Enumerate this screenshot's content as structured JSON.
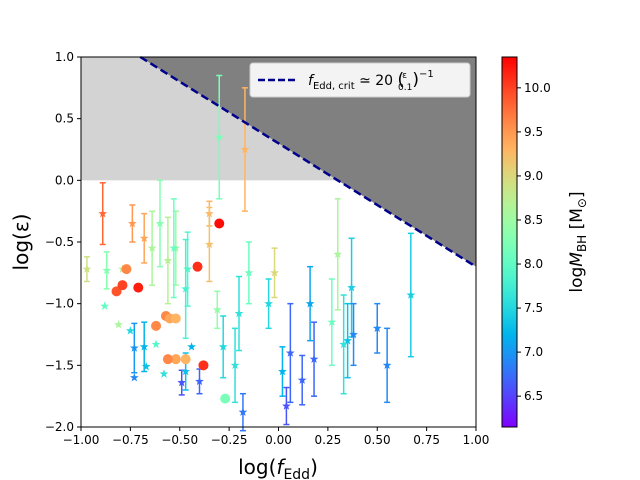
{
  "chart_data": {
    "type": "scatter",
    "x_label_parts": [
      "log(",
      "f",
      "Edd",
      ")"
    ],
    "y_label": "log(ε)",
    "xlim": [
      -1,
      1
    ],
    "ylim": [
      -2,
      1
    ],
    "xticks": [
      {
        "value": -1,
        "label": "−1.00"
      },
      {
        "value": -0.75,
        "label": "−0.75"
      },
      {
        "value": -0.5,
        "label": "−0.50"
      },
      {
        "value": -0.25,
        "label": "−0.25"
      },
      {
        "value": 0,
        "label": "0.00"
      },
      {
        "value": 0.25,
        "label": "0.25"
      },
      {
        "value": 0.5,
        "label": "0.50"
      },
      {
        "value": 0.75,
        "label": "0.75"
      },
      {
        "value": 1,
        "label": "1.00"
      }
    ],
    "yticks": [
      {
        "value": -2,
        "label": "−2.0"
      },
      {
        "value": -1.5,
        "label": "−1.5"
      },
      {
        "value": -1,
        "label": "−1.0"
      },
      {
        "value": -0.5,
        "label": "−0.5"
      },
      {
        "value": 0,
        "label": "0.0"
      },
      {
        "value": 0.5,
        "label": "0.5"
      },
      {
        "value": 1,
        "label": "1.0"
      }
    ],
    "shaded_band": {
      "ylim": [
        0,
        1
      ],
      "color": "#d3d3d3"
    },
    "critical_line": {
      "name_parts": [
        "f",
        "Edd, crit",
        " ≃ 20 ",
        "(",
        "ε",
        "0.1",
        ")",
        "−1"
      ],
      "color": "#00008b",
      "fill": "#808080",
      "x": [
        -0.7,
        1
      ],
      "values": [
        1,
        -0.7
      ]
    },
    "colorbar": {
      "label_parts": [
        "log",
        "M",
        "BH",
        " [M",
        "⊙",
        "]"
      ],
      "clim": [
        6.15,
        10.35
      ],
      "colormap": "rainbow",
      "ticks": [
        6.5,
        {
          "value": 7,
          "label": "7.0"
        },
        7.5,
        {
          "value": 8,
          "label": "8.0"
        },
        8.5,
        {
          "value": 9,
          "label": "9.0"
        },
        9.5,
        {
          "value": 10,
          "label": "10.0"
        }
      ]
    },
    "series": [
      {
        "marker": "star",
        "x": [
          -0.89,
          -0.97,
          -0.87,
          -0.88,
          -0.79,
          -0.81,
          -0.75,
          -0.73,
          -0.73,
          -0.68,
          -0.67,
          -0.74,
          -0.68,
          -0.64,
          -0.6,
          -0.62,
          -0.58,
          -0.56,
          -0.52,
          -0.53,
          -0.49,
          -0.46,
          -0.47,
          -0.47,
          -0.44,
          -0.4,
          -0.35,
          -0.35,
          -0.3,
          -0.17,
          -0.31,
          -0.28,
          -0.22,
          -0.18,
          -0.2,
          -0.15,
          -0.05,
          -0.02,
          0.02,
          0.04,
          0.06,
          0.12,
          0.16,
          0.18,
          0.27,
          0.3,
          0.35,
          0.37,
          0.38,
          0.33,
          0.5,
          0.55,
          0.67
        ],
        "values": [
          -0.27,
          -0.72,
          -0.73,
          -1.02,
          -0.72,
          -1.17,
          -1.22,
          -1.36,
          -1.6,
          -1.35,
          -1.51,
          -0.35,
          -0.47,
          -0.55,
          -0.35,
          -1.33,
          -1.57,
          -0.65,
          -0.55,
          -0.55,
          -1.64,
          -0.72,
          -0.88,
          -1.55,
          -1.35,
          -1.63,
          -0.27,
          -0.52,
          0.35,
          0.25,
          -1.05,
          -1.35,
          -1.5,
          -1.88,
          -1.08,
          -0.75,
          -1.0,
          -0.75,
          -1.55,
          -1.83,
          -1.4,
          -1.62,
          -1.0,
          -1.45,
          -1.15,
          -0.6,
          -1.3,
          -0.87,
          -1.25,
          -1.33,
          -1.2,
          -1.5,
          -0.93
        ],
        "errors": [
          0.25,
          0.1,
          0.15,
          null,
          null,
          null,
          null,
          0.2,
          null,
          0.2,
          null,
          0.15,
          0.2,
          0.3,
          0.35,
          null,
          null,
          0.35,
          0.3,
          0.4,
          0.1,
          0.3,
          0.4,
          0.15,
          null,
          0.1,
          0.1,
          0.3,
          0.5,
          0.5,
          0.15,
          0.25,
          0.3,
          0.15,
          0.3,
          0.25,
          0.2,
          0.2,
          0.2,
          0.15,
          0.4,
          0.2,
          0.3,
          0.3,
          0.35,
          0.45,
          0.3,
          0.4,
          0.25,
          0.4,
          0.2,
          0.3,
          0.5
        ],
        "mass": [
          9.8,
          8.9,
          8.3,
          8.0,
          8.8,
          8.6,
          7.5,
          7.0,
          6.9,
          7.2,
          7.3,
          9.5,
          9.4,
          8.6,
          8.3,
          7.9,
          7.6,
          8.7,
          8.5,
          8.1,
          6.6,
          7.9,
          7.8,
          7.3,
          7.2,
          6.7,
          9.3,
          9.2,
          8.2,
          9.3,
          8.4,
          7.5,
          7.6,
          6.8,
          7.6,
          8.1,
          7.5,
          9.0,
          7.2,
          6.6,
          6.7,
          6.7,
          7.1,
          6.7,
          8.1,
          8.6,
          7.3,
          7.4,
          6.9,
          7.6,
          6.9,
          6.9,
          7.4
        ]
      },
      {
        "marker": "circle",
        "x": [
          -0.82,
          -0.79,
          -0.77,
          -0.71,
          -0.62,
          -0.57,
          -0.55,
          -0.52,
          -0.52,
          -0.47,
          -0.41,
          -0.38,
          -0.3,
          -0.27,
          -0.56
        ],
        "values": [
          -0.9,
          -0.85,
          -0.72,
          -0.87,
          -1.18,
          -1.1,
          -1.12,
          -1.12,
          -1.45,
          -1.45,
          -0.7,
          -1.5,
          -0.35,
          -1.77,
          -1.45
        ],
        "mass": [
          9.9,
          10.0,
          9.6,
          10.2,
          9.6,
          9.6,
          9.4,
          9.3,
          9.4,
          9.3,
          10.1,
          10.1,
          10.3,
          8.2,
          9.6
        ]
      }
    ]
  }
}
